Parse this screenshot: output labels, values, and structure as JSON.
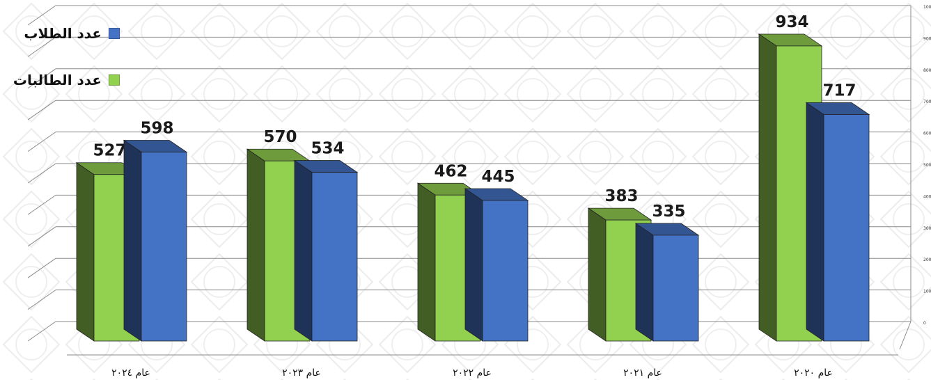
{
  "colors": {
    "students": "#4472c4",
    "female_students": "#92d050"
  },
  "legend": {
    "students_label": "عدد الطلاب",
    "female_students_label": "عدد الطالبات"
  },
  "chart_data": {
    "type": "bar",
    "title": "",
    "xlabel": "",
    "ylabel": "",
    "ylim": [
      0,
      1000
    ],
    "grid": true,
    "legend_position": "top-left",
    "categories": [
      "عام ٢٠٢٤",
      "عام ٢٠٢٣",
      "عام ٢٠٢٢",
      "عام ٢٠٢١",
      "عام ٢٠٢٠"
    ],
    "series": [
      {
        "name": "عدد الطالبات",
        "values": [
          527,
          570,
          462,
          383,
          934
        ]
      },
      {
        "name": "عدد الطلاب",
        "values": [
          598,
          534,
          445,
          335,
          717
        ]
      }
    ],
    "yticks": [
      0,
      100,
      200,
      300,
      400,
      500,
      600,
      700,
      800,
      900,
      1000
    ]
  }
}
